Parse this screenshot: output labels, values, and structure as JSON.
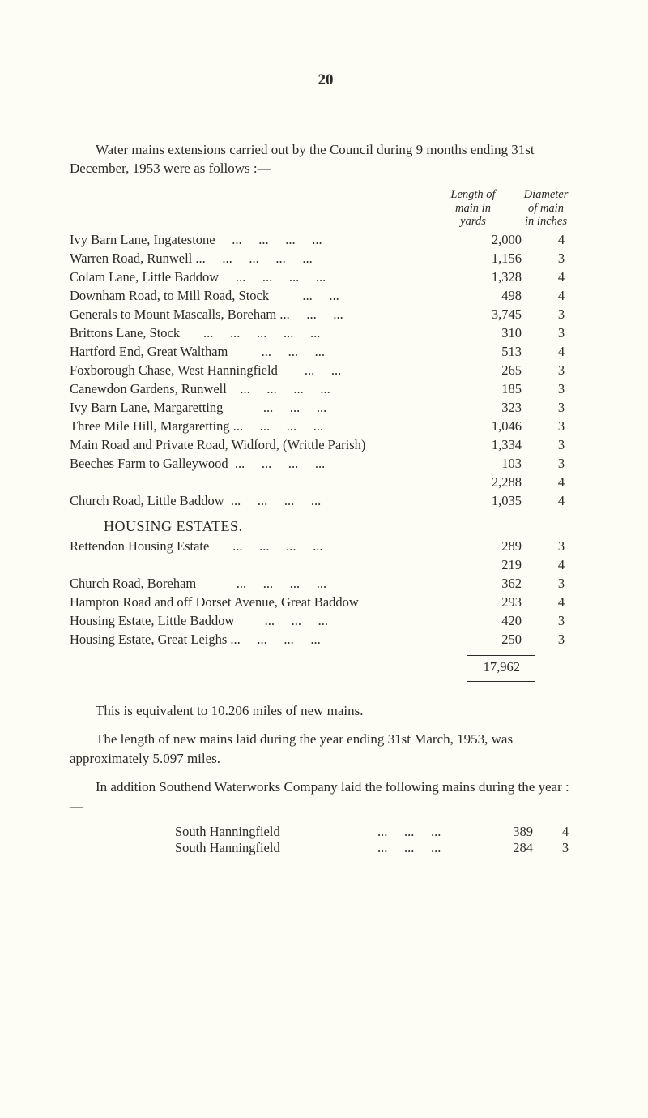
{
  "page_number": "20",
  "intro": "Water mains extensions carried out by the Council during 9 months ending 31st December, 1953 were as follows :—",
  "col_headers": {
    "length": "Length of\nmain in\nyards",
    "diameter": "Diameter\nof main\nin inches"
  },
  "rows": [
    {
      "label": "Ivy Barn Lane, Ingatestone     ...     ...     ...     ...",
      "length": "2,000",
      "diam": "4"
    },
    {
      "label": "Warren Road, Runwell ...     ...     ...     ...     ...",
      "length": "1,156",
      "diam": "3"
    },
    {
      "label": "Colam Lane, Little Baddow     ...     ...     ...     ...",
      "length": "1,328",
      "diam": "4"
    },
    {
      "label": "Downham Road, to Mill Road, Stock          ...     ...",
      "length": "498",
      "diam": "4"
    },
    {
      "label": "Generals to Mount Mascalls, Boreham ...     ...     ...",
      "length": "3,745",
      "diam": "3"
    },
    {
      "label": "Brittons Lane, Stock       ...     ...     ...     ...     ...",
      "length": "310",
      "diam": "3"
    },
    {
      "label": "Hartford End, Great Waltham          ...     ...     ...",
      "length": "513",
      "diam": "4"
    },
    {
      "label": "Foxborough Chase, West Hanningfield        ...     ...",
      "length": "265",
      "diam": "3"
    },
    {
      "label": "Canewdon Gardens, Runwell    ...     ...     ...     ...",
      "length": "185",
      "diam": "3"
    },
    {
      "label": "Ivy Barn Lane, Margaretting            ...     ...     ...",
      "length": "323",
      "diam": "3"
    },
    {
      "label": "Three Mile Hill, Margaretting ...     ...     ...     ...",
      "length": "1,046",
      "diam": "3"
    },
    {
      "label": "Main Road and Private Road, Widford, (Writtle Parish)",
      "length": "1,334",
      "diam": "3"
    },
    {
      "label": "Beeches Farm to Galleywood  ...     ...     ...     ...",
      "length": "103",
      "diam": "3"
    },
    {
      "label": "",
      "length": "2,288",
      "diam": "4",
      "tight": true
    },
    {
      "label": "Church Road, Little Baddow  ...     ...     ...     ...",
      "length": "1,035",
      "diam": "4"
    }
  ],
  "housing_header": "HOUSING ESTATES.",
  "housing_rows": [
    {
      "label": "Rettendon Housing Estate       ...     ...     ...     ...",
      "length": "289",
      "diam": "3"
    },
    {
      "label": "",
      "length": "219",
      "diam": "4",
      "tight": true
    },
    {
      "label": "Church Road, Boreham            ...     ...     ...     ...",
      "length": "362",
      "diam": "3"
    },
    {
      "label": "Hampton Road and off Dorset Avenue, Great Baddow",
      "length": "293",
      "diam": "4"
    },
    {
      "label": "Housing Estate, Little Baddow         ...     ...     ...",
      "length": "420",
      "diam": "3"
    },
    {
      "label": "Housing Estate, Great Leighs ...     ...     ...     ...",
      "length": "250",
      "diam": "3"
    }
  ],
  "total": "17,962",
  "para1": "This is equivalent to 10.206 miles of new mains.",
  "para2": "The length of new mains laid during the year ending 31st March, 1953, was approximately 5.097 miles.",
  "para3": "In addition Southend Waterworks Company laid the following mains during the year :—",
  "addendum": [
    {
      "label": "South Hanningfield",
      "dots": "...     ...     ...",
      "length": "389",
      "diam": "4"
    },
    {
      "label": "South Hanningfield",
      "dots": "...     ...     ...",
      "length": "284",
      "diam": "3"
    }
  ]
}
